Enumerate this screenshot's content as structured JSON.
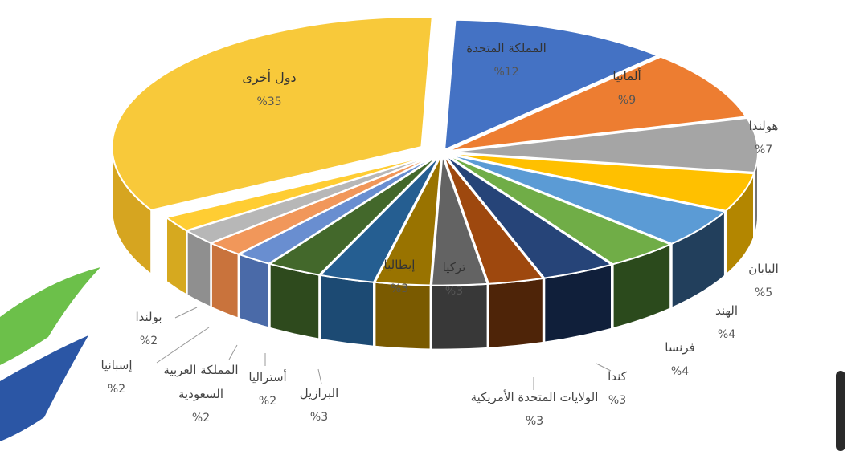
{
  "chart_data": {
    "type": "pie",
    "title": "",
    "slices": [
      {
        "name": "المملكة المتحدة",
        "value": 12,
        "label": "%12",
        "color": "#4472c4",
        "side": "#2e4f8c"
      },
      {
        "name": "ألمانيا",
        "value": 9,
        "label": "%9",
        "color": "#ed7d31",
        "side": "#a85520"
      },
      {
        "name": "هولندا",
        "value": 7,
        "label": "%7",
        "color": "#a5a5a5",
        "side": "#737373"
      },
      {
        "name": "",
        "value": 5,
        "label": "",
        "color": "#ffc000",
        "side": "#b38600"
      },
      {
        "name": "اليابان",
        "value": 5,
        "label": "%5",
        "color": "#5b9bd5",
        "side": "#223f5c"
      },
      {
        "name": "الهند",
        "value": 4,
        "label": "%4",
        "color": "#70ad47",
        "side": "#2b4a1c"
      },
      {
        "name": "فرنسا",
        "value": 4,
        "label": "%4",
        "color": "#264478",
        "side": "#101f3a"
      },
      {
        "name": "كندا",
        "value": 3,
        "label": "%3",
        "color": "#9e480e",
        "side": "#4e2408"
      },
      {
        "name": "الولايات المتحدة الأمريكية",
        "value": 3,
        "label": "%3",
        "color": "#636363",
        "side": "#383838"
      },
      {
        "name": "تركيا",
        "value": 3,
        "label": "%3",
        "color": "#997300",
        "side": "#7a5a00"
      },
      {
        "name": "إيطاليا",
        "value": 3,
        "label": "%3",
        "color": "#255e91",
        "side": "#1c4a73"
      },
      {
        "name": "البرازيل",
        "value": 3,
        "label": "%3",
        "color": "#43682b",
        "side": "#2e4a1d"
      },
      {
        "name": "أستراليا",
        "value": 2,
        "label": "%2",
        "color": "#698ed0",
        "side": "#4a6aa8"
      },
      {
        "name": "المملكة العربية السعودية",
        "value": 2,
        "label": "%2",
        "color": "#f1975a",
        "side": "#c9733c"
      },
      {
        "name": "إسبانيا",
        "value": 2,
        "label": "%2",
        "color": "#b7b7b7",
        "side": "#8f8f8f"
      },
      {
        "name": "بولندا",
        "value": 2,
        "label": "%2",
        "color": "#ffcd33",
        "side": "#d6a91f"
      },
      {
        "name": "دول أخرى",
        "value": 35,
        "label": "%35",
        "color": "#f8c93a",
        "side": "#d6a520"
      }
    ]
  },
  "labels": {
    "uk": {
      "name": "المملكة المتحدة",
      "value": "%12"
    },
    "germany": {
      "name": "ألمانيا",
      "value": "%9"
    },
    "netherlands": {
      "name": "هولندا",
      "value": "%7"
    },
    "japan": {
      "name": "اليابان",
      "value": "%5"
    },
    "india": {
      "name": "الهند",
      "value": "%4"
    },
    "france": {
      "name": "فرنسا",
      "value": "%4"
    },
    "canada": {
      "name": "كندا",
      "value": "%3"
    },
    "usa": {
      "name": "الولايات المتحدة الأمريكية",
      "value": "%3"
    },
    "turkey": {
      "name": "تركيا",
      "value": "%3"
    },
    "italy": {
      "name": "إيطاليا",
      "value": "%3"
    },
    "brazil": {
      "name": "البرازيل",
      "value": "%3"
    },
    "australia": {
      "name": "أستراليا",
      "value": "%2"
    },
    "saudi": {
      "name1": "المملكة العربية",
      "name2": "السعودية",
      "value": "%2"
    },
    "spain": {
      "name": "إسبانيا",
      "value": "%2"
    },
    "poland": {
      "name": "بولندا",
      "value": "%2"
    },
    "others": {
      "name": "دول أخرى",
      "value": "%35"
    }
  }
}
